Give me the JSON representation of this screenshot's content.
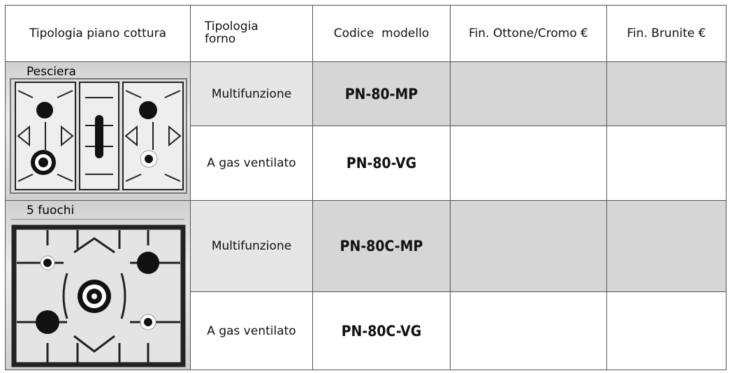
{
  "header": {
    "columns": [
      "Tipologia piano cottura",
      "Tipologia forno",
      "Codice  modello",
      "Fin. Ottone/Cromo €",
      "Fin. Brunite €"
    ]
  },
  "groups": [
    {
      "label": "Pesciera",
      "rows": [
        {
          "oven": "Multifunzione",
          "code": "PN-80-MP"
        },
        {
          "oven": "A gas ventilato",
          "code": "PN-80-VG"
        }
      ]
    },
    {
      "label": "5 fuochi",
      "rows": [
        {
          "oven": "Multifunzione",
          "code": "PN-80C-MP"
        },
        {
          "oven": "A gas ventilato",
          "code": "PN-80C-VG"
        }
      ]
    }
  ]
}
